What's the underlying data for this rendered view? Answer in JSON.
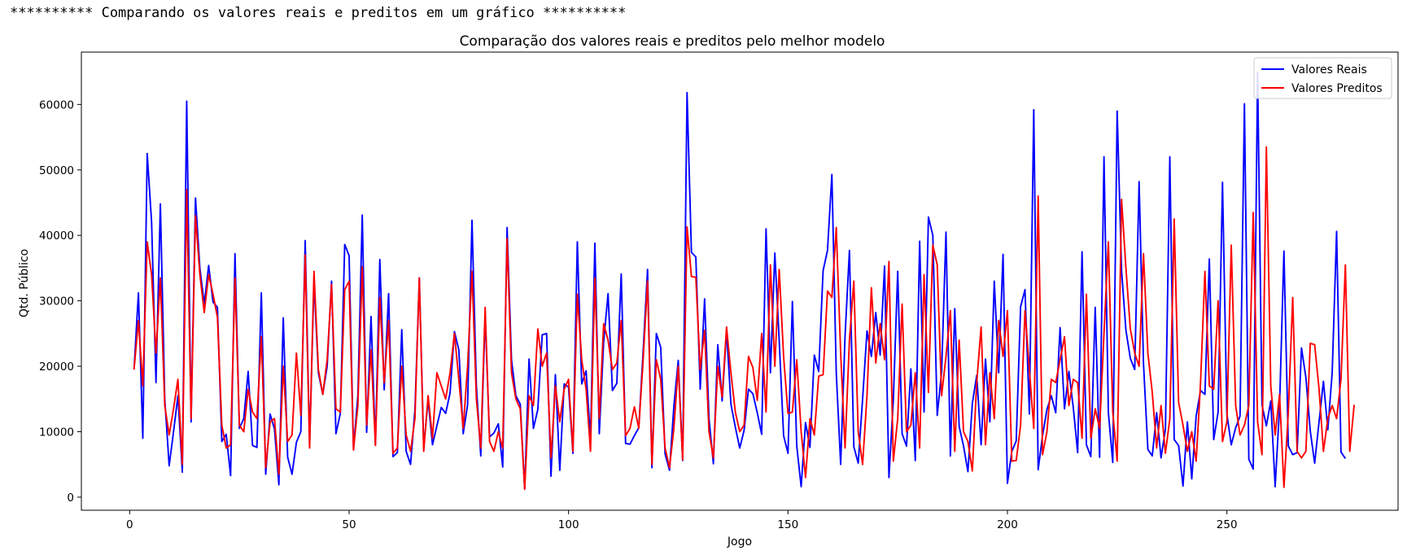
{
  "console": {
    "text": "********** Comparando os valores reais e preditos em um gráfico **********"
  },
  "chart_data": {
    "type": "line",
    "title": "Comparação dos valores reais e preditos pelo melhor modelo",
    "xlabel": "Jogo",
    "ylabel": "Qtd. Público",
    "xlim": [
      -11,
      289
    ],
    "ylim": [
      -2000,
      68000
    ],
    "xticks": [
      0,
      50,
      100,
      150,
      200,
      250
    ],
    "yticks": [
      0,
      10000,
      20000,
      30000,
      40000,
      50000,
      60000
    ],
    "xtick_labels": [
      "0",
      "50",
      "100",
      "150",
      "200",
      "250"
    ],
    "ytick_labels": [
      "0",
      "10000",
      "20000",
      "30000",
      "40000",
      "50000",
      "60000"
    ],
    "grid": false,
    "legend_position": "top-right",
    "x_start": 1,
    "series": [
      {
        "name": "Valores Reais",
        "color": "#0000ff",
        "values": [
          19500,
          31200,
          9000,
          52500,
          42000,
          17500,
          44800,
          15000,
          4800,
          10000,
          15500,
          3800,
          60500,
          11500,
          45700,
          35000,
          29500,
          35400,
          29800,
          29000,
          8500,
          9600,
          3300,
          37200,
          10500,
          12000,
          19200,
          7900,
          7600,
          31200,
          3500,
          12700,
          10400,
          1900,
          27400,
          6100,
          3500,
          8400,
          10000,
          39200,
          8000,
          33000,
          19000,
          15700,
          20000,
          33000,
          9700,
          12800,
          38600,
          36900,
          7400,
          15500,
          43100,
          9900,
          27600,
          8000,
          36300,
          16400,
          31100,
          6200,
          6800,
          25600,
          7000,
          5000,
          13300,
          33500,
          7600,
          14900,
          8000,
          10900,
          13700,
          12800,
          15900,
          25300,
          22500,
          9700,
          14100,
          42300,
          17000,
          6300,
          27700,
          9200,
          9800,
          11200,
          4600,
          41200,
          21000,
          15500,
          14200,
          1300,
          21100,
          10500,
          13400,
          24800,
          25000,
          3200,
          18700,
          4100,
          17300,
          16800,
          6700,
          39000,
          17300,
          19300,
          8800,
          38800,
          9700,
          23700,
          31100,
          16300,
          17400,
          34100,
          8200,
          8100,
          9400,
          10600,
          22300,
          34800,
          4500,
          25000,
          22900,
          6600,
          4100,
          13900,
          20900,
          5600,
          61800,
          37400,
          36700,
          16500,
          30300,
          12000,
          5100,
          23300,
          14700,
          25400,
          14200,
          10700,
          7500,
          10200,
          16500,
          15800,
          12900,
          9600,
          41000,
          19000,
          37300,
          23900,
          9400,
          6700,
          29900,
          7800,
          1600,
          11400,
          7600,
          21700,
          19200,
          34600,
          37700,
          49300,
          19000,
          5000,
          24600,
          37700,
          7700,
          5200,
          15000,
          25400,
          21500,
          28200,
          21700,
          35300,
          3000,
          14800,
          34500,
          9700,
          7800,
          19600,
          5600,
          39100,
          13000,
          42800,
          40000,
          12500,
          19100,
          40500,
          6300,
          28800,
          10800,
          7800,
          3900,
          14300,
          18600,
          8000,
          21100,
          11500,
          33000,
          19000,
          37100,
          2100,
          7000,
          8600,
          29100,
          31700,
          12700,
          59200,
          4200,
          9400,
          13400,
          15500,
          12900,
          25900,
          13500,
          19200,
          13700,
          6800,
          37500,
          8000,
          6200,
          29000,
          6100,
          52000,
          12900,
          5300,
          59000,
          34600,
          25500,
          21200,
          19500,
          48200,
          20400,
          7300,
          6300,
          12900,
          6000,
          10400,
          52000,
          8800,
          7900,
          1700,
          11500,
          2800,
          12400,
          16300,
          15700,
          36400,
          8800,
          13000,
          48100,
          12700,
          8000,
          10600,
          12400,
          60100,
          5800,
          4300,
          64900,
          14100,
          10900,
          14700,
          1600,
          13700,
          37600,
          7800,
          6500,
          6800,
          22800,
          18300,
          10100,
          5200,
          11500,
          17700,
          10300,
          19100,
          40600,
          6900,
          5900
        ]
      },
      {
        "name": "Valores Preditos",
        "color": "#ff0000",
        "values": [
          19500,
          27000,
          17000,
          39000,
          34000,
          22000,
          33500,
          14000,
          9500,
          13500,
          18000,
          5000,
          47000,
          12000,
          43000,
          34000,
          28200,
          34000,
          31000,
          27500,
          11000,
          7500,
          8000,
          33500,
          11000,
          10000,
          16500,
          13000,
          12000,
          24500,
          4500,
          11500,
          12000,
          3500,
          20000,
          8500,
          9500,
          22000,
          12500,
          37000,
          7500,
          34500,
          19500,
          15700,
          21000,
          32500,
          13500,
          13000,
          31700,
          33000,
          7200,
          14000,
          35200,
          11000,
          22500,
          7900,
          30500,
          17500,
          27000,
          6700,
          7500,
          20000,
          9500,
          7000,
          12000,
          33500,
          7000,
          15500,
          9000,
          19000,
          17000,
          15000,
          19000,
          25000,
          18000,
          10500,
          20000,
          34500,
          15000,
          7500,
          29000,
          8500,
          7000,
          10000,
          7500,
          39500,
          19000,
          15000,
          13500,
          1200,
          15500,
          14000,
          25700,
          20000,
          22000,
          6000,
          17000,
          11500,
          16500,
          18000,
          7000,
          31000,
          21000,
          16500,
          7000,
          33500,
          12000,
          26500,
          24000,
          19500,
          20500,
          27000,
          9400,
          10500,
          13800,
          10500,
          21000,
          33000,
          5000,
          21000,
          18000,
          7500,
          4500,
          10500,
          20000,
          5700,
          41300,
          33700,
          33600,
          19500,
          25500,
          10000,
          6000,
          20000,
          15300,
          26000,
          19000,
          13000,
          10000,
          11000,
          21500,
          19800,
          14800,
          25000,
          13000,
          35500,
          20000,
          34800,
          21500,
          12800,
          13000,
          21000,
          10000,
          3000,
          12000,
          9500,
          18500,
          18700,
          31500,
          30500,
          41200,
          22000,
          7500,
          24000,
          33000,
          10000,
          5000,
          15500,
          32000,
          20500,
          26500,
          21000,
          36000,
          5500,
          12000,
          29500,
          10000,
          11000,
          19000,
          7500,
          34000,
          16000,
          38500,
          35500,
          15500,
          21500,
          28500,
          7000,
          24000,
          10000,
          8500,
          4000,
          17500,
          26000,
          8000,
          19000,
          12000,
          27000,
          21500,
          28500,
          5500,
          5600,
          11000,
          28500,
          19500,
          10500,
          46000,
          6500,
          10000,
          18000,
          17500,
          21000,
          24500,
          14000,
          18000,
          17500,
          9000,
          31000,
          9000,
          13500,
          10500,
          25000,
          39000,
          13000,
          5500,
          45500,
          35000,
          25700,
          22000,
          20000,
          37200,
          22000,
          16000,
          7500,
          14000,
          6700,
          12000,
          42500,
          14500,
          11000,
          7000,
          10000,
          5500,
          17500,
          34500,
          17000,
          16500,
          30000,
          8500,
          11500,
          38500,
          14000,
          9500,
          11000,
          14000,
          43500,
          11500,
          6500,
          53500,
          17000,
          9500,
          15700,
          1500,
          13000,
          30500,
          7000,
          6000,
          7000,
          23500,
          23300,
          16500,
          7000,
          12000,
          14000,
          12000,
          18000,
          35500,
          7000,
          14100
        ]
      }
    ]
  }
}
